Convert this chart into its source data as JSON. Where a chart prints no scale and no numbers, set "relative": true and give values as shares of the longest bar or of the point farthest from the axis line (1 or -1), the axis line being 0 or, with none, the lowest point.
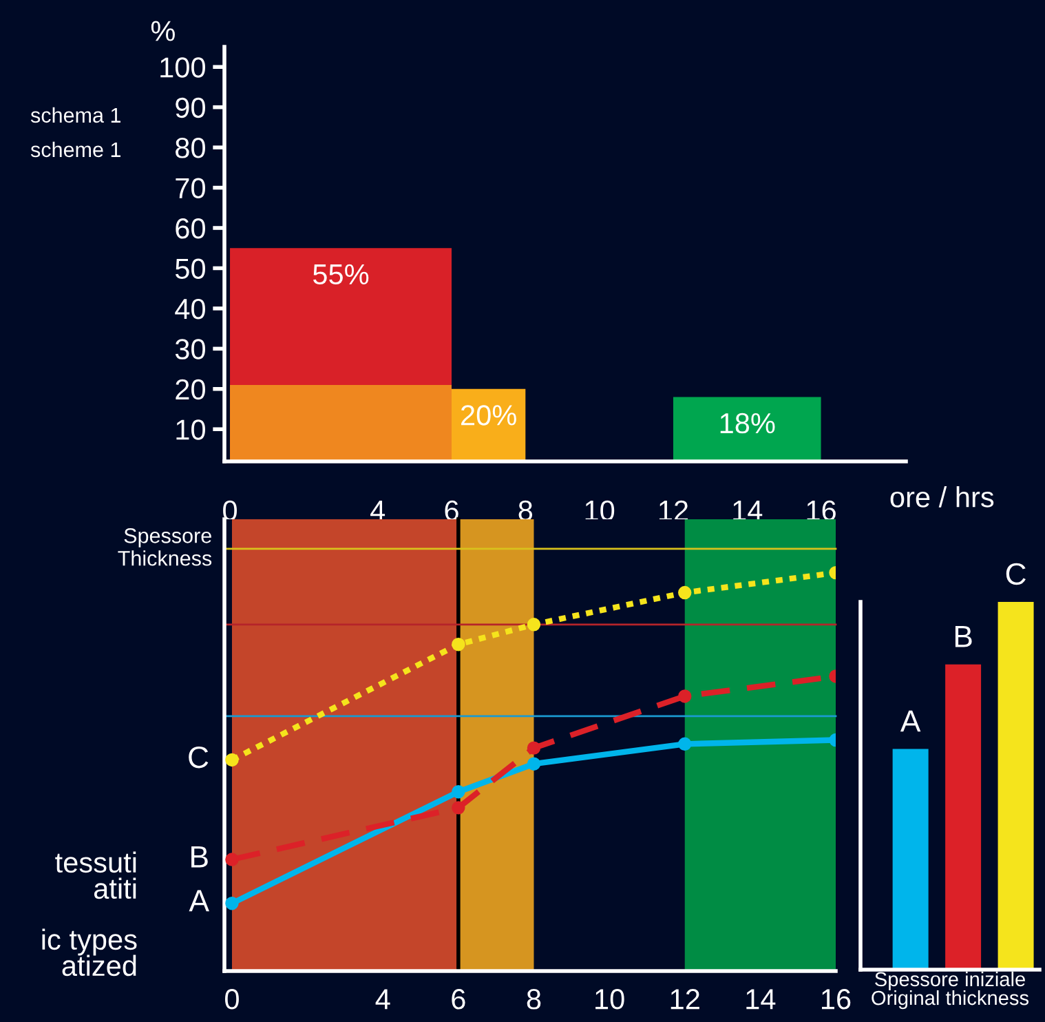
{
  "chart_data": [
    {
      "type": "histogram",
      "ylabel": "%",
      "xlabel": "ore / hrs",
      "bins": [
        0,
        6,
        8,
        12,
        16
      ],
      "series": [
        {
          "values": [
            55,
            20,
            null,
            18
          ],
          "colors": [
            "#d92128",
            "#f9ae1a",
            "#000a26",
            "#00a64f"
          ],
          "value_labels": [
            "55%",
            "20%",
            null,
            "18%"
          ]
        },
        {
          "values": [
            21,
            null,
            null,
            null
          ],
          "color": "#ef871f"
        }
      ],
      "xlim": [
        -0.15,
        18.3
      ],
      "xticks": [
        0,
        4,
        6,
        8,
        10,
        12,
        14,
        16
      ],
      "ylim": [
        2,
        105
      ],
      "yticks": [
        10,
        20,
        30,
        40,
        50,
        60,
        70,
        80,
        90,
        100
      ],
      "grid": false,
      "annotations": [
        "schema 1",
        "scheme 1",
        "tessuti",
        "atiti",
        "ic types",
        "atized"
      ]
    },
    {
      "type": "line",
      "relative": true,
      "ylabel": "Spessore\nThickness",
      "x": [
        0,
        6,
        8,
        12,
        16
      ],
      "marker": "circle",
      "grid": false,
      "series": [
        {
          "name": "A",
          "color": "#00b5eb",
          "line_style": "solid",
          "values": [
            0.17,
            0.45,
            0.52,
            0.57,
            0.58
          ]
        },
        {
          "name": "B",
          "color": "#dc2128",
          "line_style": "dashed",
          "values": [
            0.28,
            0.41,
            0.56,
            0.69,
            0.74
          ]
        },
        {
          "name": "C",
          "color": "#f5e41c",
          "line_style": "dotted",
          "values": [
            0.53,
            0.82,
            0.87,
            0.95,
            1
          ]
        }
      ],
      "xlim": [
        -0.2,
        16
      ],
      "xticks": [
        0,
        4,
        6,
        8,
        10,
        12,
        14,
        16
      ],
      "bands": [
        {
          "axis": "x",
          "from": 0,
          "to": 6,
          "color": "#c4452a"
        },
        {
          "axis": "x",
          "from": 6,
          "to": 8,
          "color": "#d69520"
        },
        {
          "axis": "x",
          "from": 12,
          "to": 16,
          "color": "#008c44"
        }
      ],
      "ref_lines": [
        {
          "axis": "x",
          "value": 6,
          "color": "#000000"
        },
        {
          "axis": "y",
          "value": 1.06,
          "color": "#d9c21c"
        },
        {
          "axis": "y",
          "value": 0.87,
          "color": "#b5242a"
        },
        {
          "axis": "y",
          "value": 0.64,
          "color": "#1a9ad0"
        }
      ]
    },
    {
      "type": "bar",
      "relative": true,
      "xlabel": "Spessore iniziale\nOriginal thickness",
      "categories": [
        "A",
        "B",
        "C"
      ],
      "values": [
        0.6,
        0.83,
        1
      ],
      "colors": [
        "#00b5eb",
        "#dc2128",
        "#f5e41c"
      ]
    }
  ]
}
